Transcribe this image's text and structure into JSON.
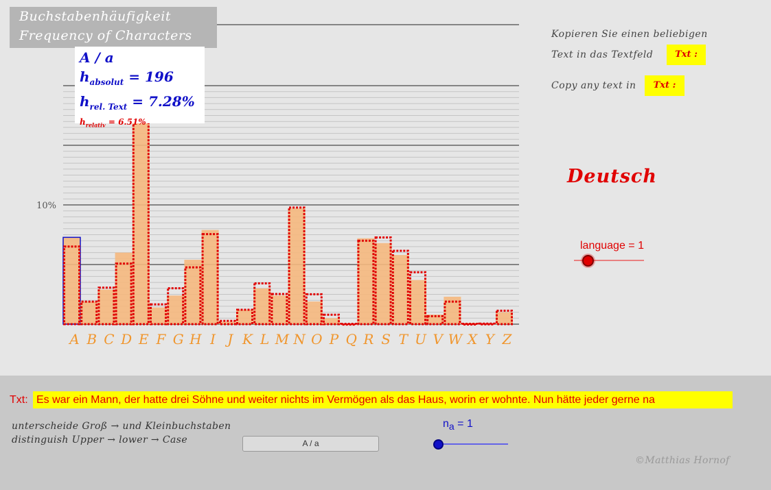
{
  "title": {
    "line1": "Buchstabenhäufigkeit",
    "line2": "Frequency of Characters"
  },
  "info": {
    "letter": "A / a",
    "h_absolut_label": "h",
    "h_absolut_sub": "absolut",
    "h_absolut_value": "= 196",
    "h_rel_label": "h",
    "h_rel_sub": "rel. Text",
    "h_rel_value": "= 7.28%",
    "h_relativ_label": "h",
    "h_relativ_sub": "relativ",
    "h_relativ_value": "= 6.51%"
  },
  "instructions": {
    "de_line1": "Kopieren Sie einen beliebigen",
    "de_line2": "Text in das Textfeld",
    "en_line1": "Copy any text in",
    "badge": "Txt :"
  },
  "language": {
    "name": "Deutsch",
    "slider_label": "language = 1",
    "slider_value": 1
  },
  "text_input": {
    "label": "Txt:",
    "value": "Es war ein Mann, der hatte drei Söhne und weiter nichts im Vermögen als das Haus, worin er wohnte. Nun hätte jeder gerne na"
  },
  "case_option": {
    "de_line": "unterscheide Groß → und Kleinbuchstaben",
    "en_line": "distinguish Upper → lower → Case",
    "button_label": "A / a"
  },
  "n_a": {
    "label": "n",
    "sub": "a",
    "value_text": "= 1",
    "value": 1
  },
  "copyright": "©Matthias Hornof",
  "colors": {
    "bar_fill": "#f5b87e",
    "reference_dots": "#e00000",
    "selected_outline": "#1010c8",
    "letter_color": "#f0962e",
    "highlight_yellow": "#ffff00"
  },
  "chart_data": {
    "type": "bar",
    "title": "",
    "xlabel": "",
    "ylabel": "",
    "ylim": [
      0,
      20
    ],
    "ytick_label": "10%",
    "ytick_value": 10,
    "categories": [
      "A",
      "B",
      "C",
      "D",
      "E",
      "F",
      "G",
      "H",
      "I",
      "J",
      "K",
      "L",
      "M",
      "N",
      "O",
      "P",
      "Q",
      "R",
      "S",
      "T",
      "U",
      "V",
      "W",
      "X",
      "Y",
      "Z"
    ],
    "selected": "A",
    "series": [
      {
        "values": [
          7.28,
          1.9,
          2.9,
          6.0,
          17.8,
          1.4,
          2.4,
          5.4,
          7.9,
          0.2,
          1.2,
          3.0,
          2.4,
          9.7,
          1.9,
          0.5,
          0.0,
          7.2,
          6.8,
          5.8,
          3.7,
          0.8,
          2.3,
          0.1,
          0.0,
          1.0
        ],
        "style": "filled"
      },
      {
        "values": [
          6.51,
          1.89,
          3.06,
          5.08,
          17.4,
          1.66,
          3.01,
          4.76,
          7.55,
          0.27,
          1.21,
          3.42,
          2.53,
          9.78,
          2.51,
          0.79,
          0.02,
          7.0,
          7.27,
          6.15,
          4.35,
          0.67,
          1.89,
          0.03,
          0.04,
          1.13
        ],
        "style": "dotted-outline"
      }
    ]
  }
}
